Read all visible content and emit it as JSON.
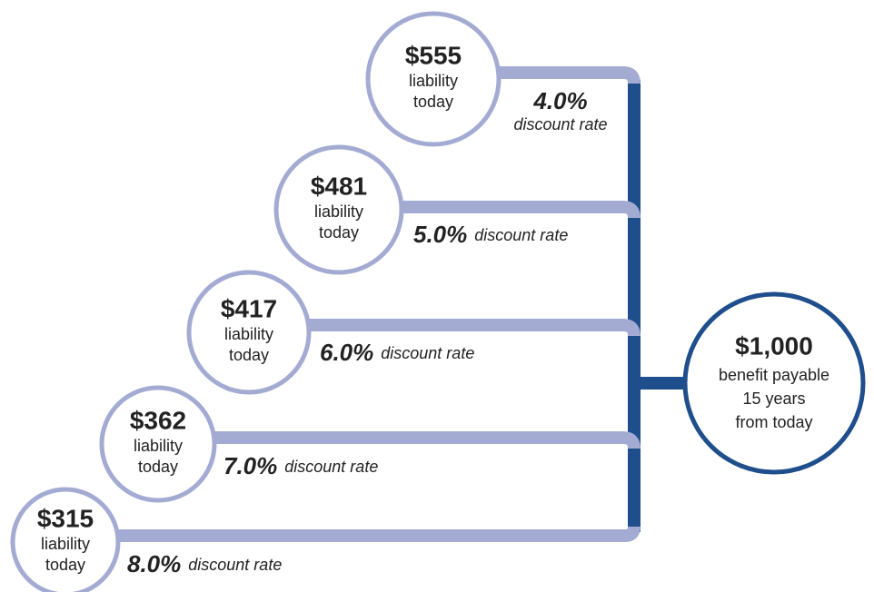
{
  "nodes": [
    {
      "amount": "$555",
      "label": [
        "liability",
        "today"
      ],
      "rate": "4.0%",
      "rate_label": "discount rate"
    },
    {
      "amount": "$481",
      "label": [
        "liability",
        "today"
      ],
      "rate": "5.0%",
      "rate_label": "discount rate"
    },
    {
      "amount": "$417",
      "label": [
        "liability",
        "today"
      ],
      "rate": "6.0%",
      "rate_label": "discount rate"
    },
    {
      "amount": "$362",
      "label": [
        "liability",
        "today"
      ],
      "rate": "7.0%",
      "rate_label": "discount rate"
    },
    {
      "amount": "$315",
      "label": [
        "liability",
        "today"
      ],
      "rate": "8.0%",
      "rate_label": "discount rate"
    }
  ],
  "target": {
    "amount": "$1,000",
    "label": [
      "benefit payable",
      "15 years",
      "from today"
    ]
  }
}
